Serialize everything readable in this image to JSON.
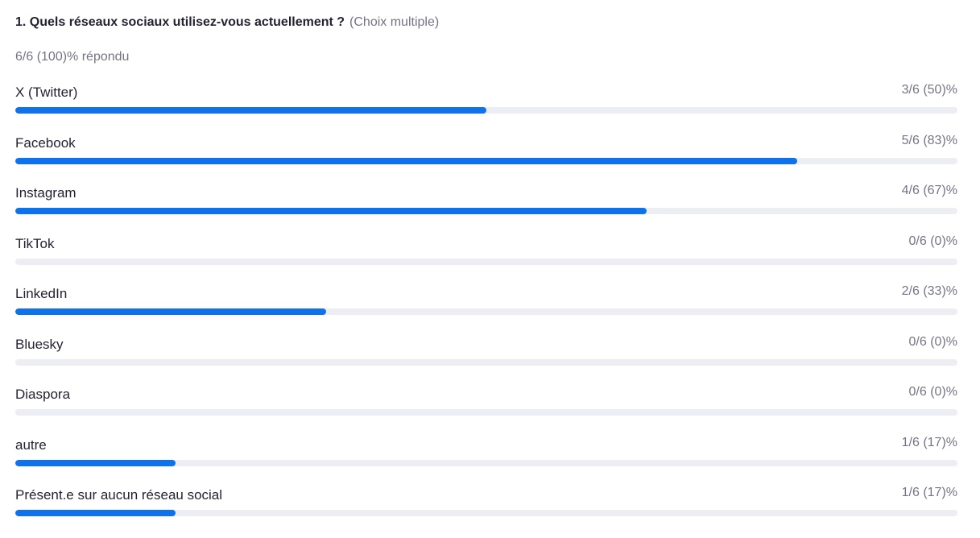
{
  "question": {
    "title": "1. Quels réseaux sociaux utilisez-vous actuellement ?",
    "type": "(Choix multiple)"
  },
  "summary": {
    "answered": "6/6 (100)% répondu"
  },
  "colors": {
    "accent": "#0e72ed",
    "track": "#ededf4",
    "text": "#232333",
    "muted": "#747487"
  },
  "options": [
    {
      "label": "X (Twitter)",
      "result": "3/6 (50)%",
      "fraction": 0.5
    },
    {
      "label": "Facebook",
      "result": "5/6 (83)%",
      "fraction": 0.83
    },
    {
      "label": "Instagram",
      "result": "4/6 (67)%",
      "fraction": 0.67
    },
    {
      "label": "TikTok",
      "result": "0/6 (0)%",
      "fraction": 0
    },
    {
      "label": "LinkedIn",
      "result": "2/6 (33)%",
      "fraction": 0.33
    },
    {
      "label": "Bluesky",
      "result": "0/6 (0)%",
      "fraction": 0
    },
    {
      "label": "Diaspora",
      "result": "0/6 (0)%",
      "fraction": 0
    },
    {
      "label": "autre",
      "result": "1/6 (17)%",
      "fraction": 0.17
    },
    {
      "label": "Présent.e sur aucun réseau social",
      "result": "1/6 (17)%",
      "fraction": 0.17
    }
  ]
}
